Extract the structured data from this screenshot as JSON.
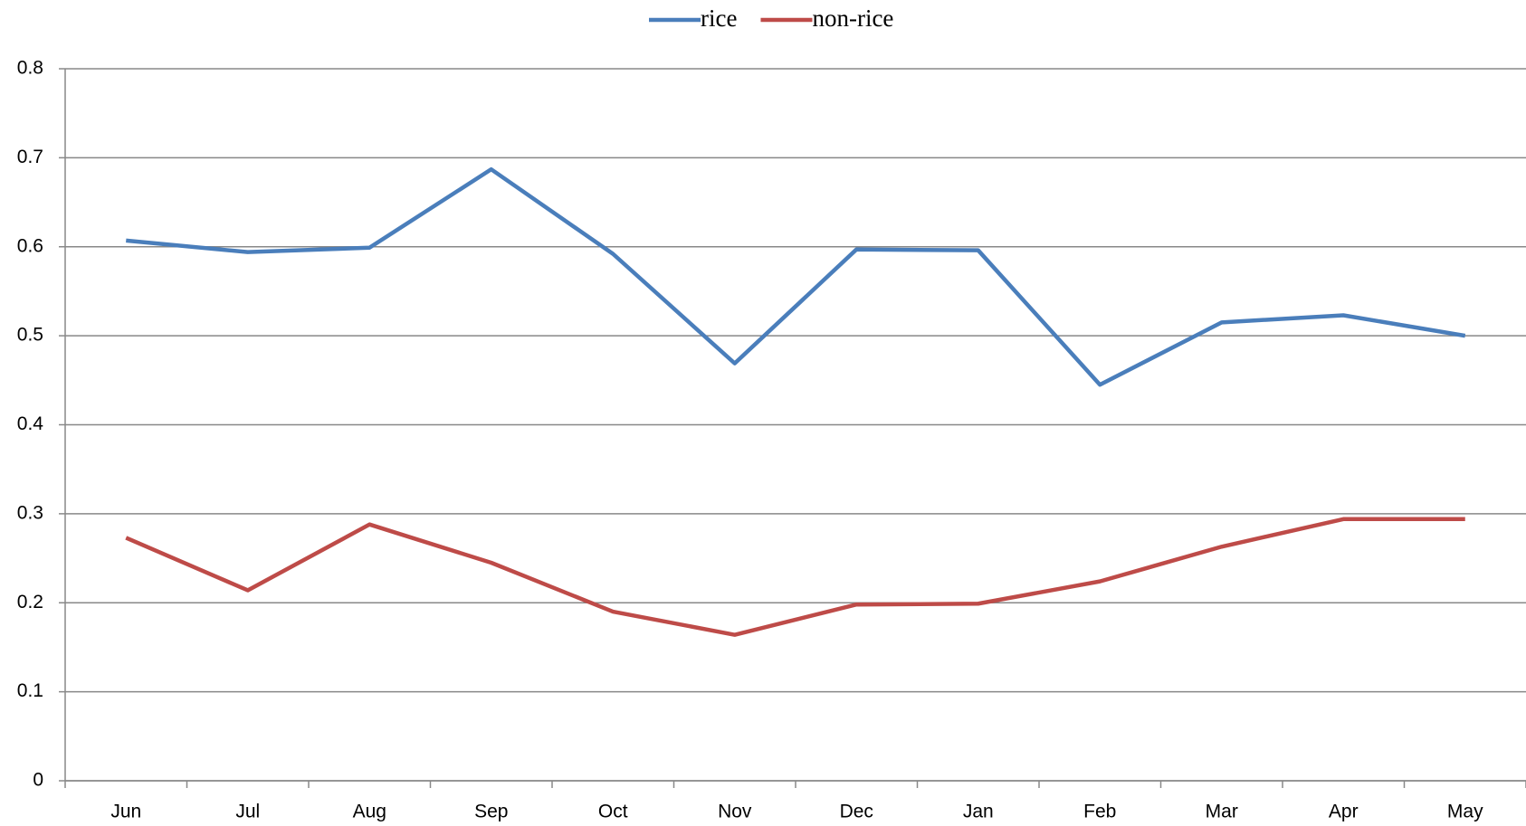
{
  "chart_data": {
    "type": "line",
    "categories": [
      "Jun",
      "Jul",
      "Aug",
      "Sep",
      "Oct",
      "Nov",
      "Dec",
      "Jan",
      "Feb",
      "Mar",
      "Apr",
      "May"
    ],
    "series": [
      {
        "name": "rice",
        "color": "#4a7ebb",
        "values": [
          0.607,
          0.594,
          0.599,
          0.687,
          0.592,
          0.469,
          0.597,
          0.596,
          0.445,
          0.515,
          0.523,
          0.5
        ]
      },
      {
        "name": "non-rice",
        "color": "#be4b48",
        "values": [
          0.273,
          0.214,
          0.288,
          0.245,
          0.19,
          0.164,
          0.198,
          0.199,
          0.224,
          0.263,
          0.294,
          0.294
        ]
      }
    ],
    "ylim": [
      0,
      0.8
    ],
    "yticks": [
      0,
      0.1,
      0.2,
      0.3,
      0.4,
      0.5,
      0.6,
      0.7,
      0.8
    ],
    "grid": true,
    "legend": "top"
  }
}
